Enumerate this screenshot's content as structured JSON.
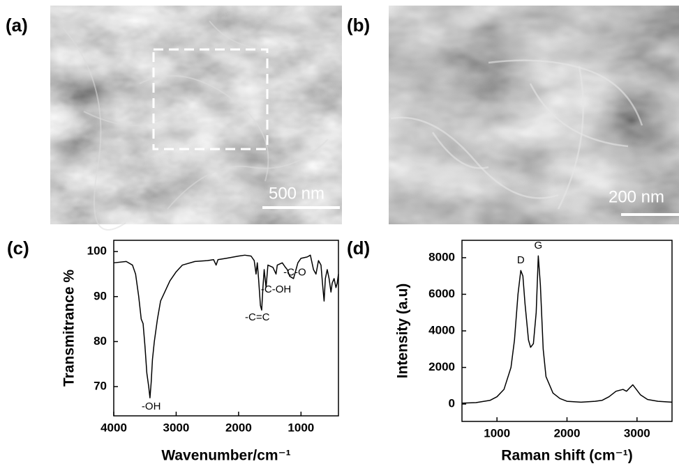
{
  "panels": [
    {
      "label": "(a)",
      "scale_bar": "500 nm"
    },
    {
      "label": "(b)",
      "scale_bar": "200 nm"
    }
  ],
  "chart_data": [
    {
      "type": "line",
      "panel_label": "(c)",
      "x_label": "Wavenumber/cm⁻¹",
      "y_label": "Transmitrance %",
      "color": "#000000",
      "x": [
        4000,
        3800,
        3700,
        3650,
        3600,
        3560,
        3530,
        3500,
        3470,
        3440,
        3420,
        3400,
        3380,
        3350,
        3300,
        3250,
        3200,
        3150,
        3100,
        3000,
        2900,
        2700,
        2500,
        2400,
        2360,
        2330,
        2200,
        2000,
        1900,
        1800,
        1750,
        1720,
        1700,
        1680,
        1650,
        1630,
        1610,
        1590,
        1560,
        1530,
        1450,
        1400,
        1380,
        1300,
        1250,
        1220,
        1180,
        1120,
        1080,
        1050,
        1000,
        900,
        850,
        800,
        760,
        720,
        680,
        650,
        630,
        610,
        580,
        550,
        520,
        500,
        470,
        440,
        420,
        400
      ],
      "values": [
        97.5,
        97.8,
        97,
        95,
        90,
        85,
        84,
        79,
        73,
        70,
        67.5,
        71,
        76,
        80,
        85,
        89,
        90.5,
        92,
        93.5,
        95.5,
        97,
        97.8,
        98,
        98.2,
        97,
        98.2,
        98.5,
        99,
        99.2,
        99,
        98,
        95,
        97.5,
        94,
        88,
        87,
        92,
        96,
        92,
        97,
        96.5,
        95,
        97,
        97.5,
        96.5,
        96,
        94.5,
        94,
        96,
        97.5,
        98.5,
        98.8,
        99.2,
        96,
        95,
        98,
        97,
        92,
        89,
        94,
        96,
        94,
        91,
        93,
        94,
        92,
        93,
        95
      ],
      "xlim": [
        4000,
        400
      ],
      "xticks": [
        4000,
        3000,
        2000,
        1000
      ],
      "ylim": [
        63.5,
        102.5
      ],
      "yticks": [
        70,
        80,
        90,
        100
      ],
      "annotations": [
        {
          "text": "-OH",
          "x": 3400,
          "y": 65.5
        },
        {
          "text": "-C=C",
          "x": 1700,
          "y": 85.3
        },
        {
          "text": "-C-OH",
          "x": 1400,
          "y": 91.5
        },
        {
          "text": "-C-O",
          "x": 1100,
          "y": 95.3
        }
      ]
    },
    {
      "type": "line",
      "panel_label": "(d)",
      "x_label": "Raman shift (cm⁻¹)",
      "y_label": "Intensity (a.u)",
      "color": "#000000",
      "x": [
        500,
        700,
        900,
        1000,
        1100,
        1200,
        1250,
        1300,
        1340,
        1370,
        1400,
        1450,
        1480,
        1520,
        1560,
        1590,
        1620,
        1660,
        1700,
        1800,
        1900,
        2000,
        2200,
        2400,
        2500,
        2600,
        2700,
        2800,
        2850,
        2900,
        2940,
        2980,
        3050,
        3150,
        3300,
        3500
      ],
      "values": [
        50,
        80,
        200,
        400,
        800,
        2000,
        3500,
        6000,
        7300,
        7000,
        5500,
        3500,
        3100,
        3300,
        5000,
        8100,
        6500,
        3000,
        1500,
        600,
        300,
        150,
        100,
        150,
        200,
        400,
        700,
        800,
        700,
        900,
        1050,
        850,
        500,
        250,
        150,
        100
      ],
      "xlim": [
        500,
        3500
      ],
      "xticks": [
        1000,
        2000,
        3000
      ],
      "ylim": [
        -950,
        8950
      ],
      "yticks": [
        0,
        2000,
        4000,
        6000,
        8000
      ],
      "annotations": [
        {
          "text": "D",
          "x": 1340,
          "y": 7850
        },
        {
          "text": "G",
          "x": 1590,
          "y": 8650
        }
      ]
    }
  ]
}
